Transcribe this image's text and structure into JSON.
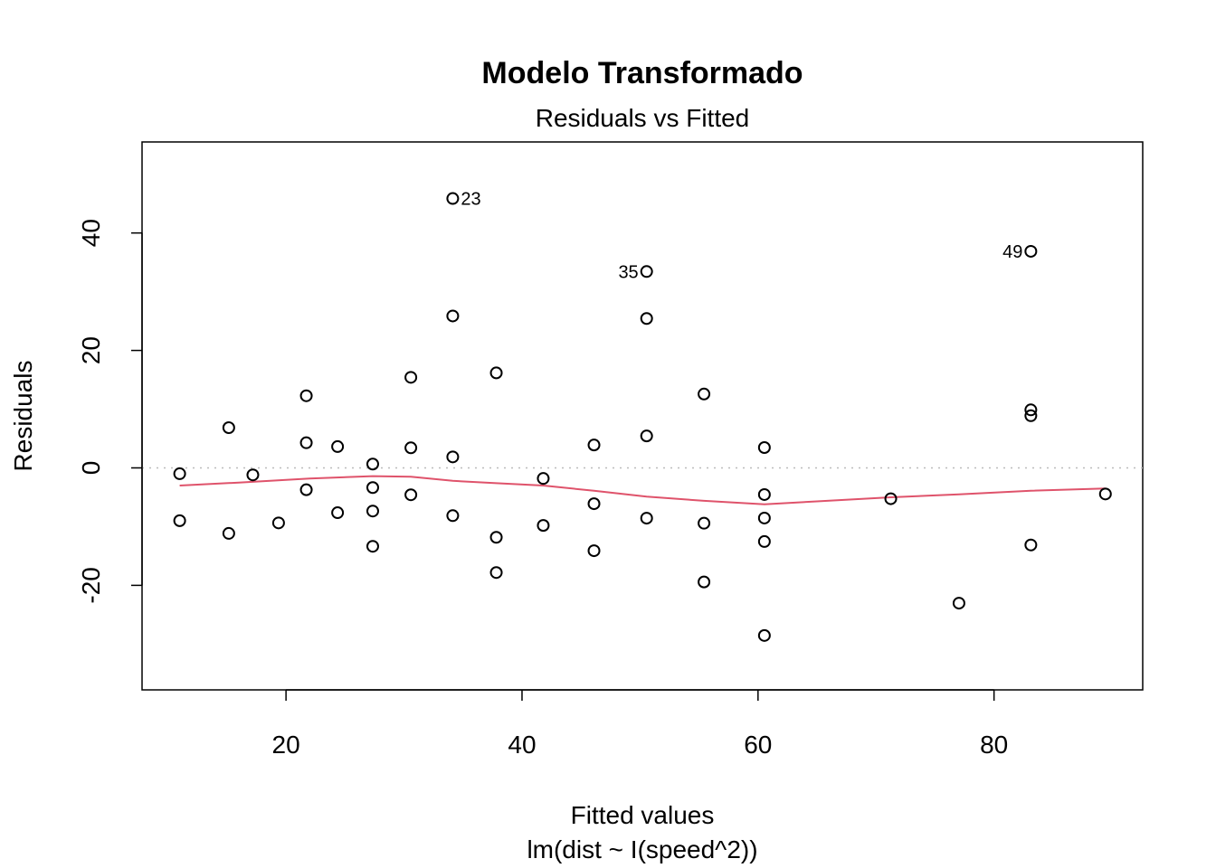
{
  "chart_data": {
    "type": "scatter",
    "title": "Modelo Transformado",
    "subtitle": "Residuals vs Fitted",
    "xlabel": "Fitted values",
    "xlabel_sub": "lm(dist ~ I(speed^2))",
    "ylabel": "Residuals",
    "xlim": [
      7.8,
      92.6
    ],
    "ylim": [
      -37.8,
      55.5
    ],
    "x_ticks": [
      20,
      40,
      60,
      80
    ],
    "y_ticks": [
      -20,
      0,
      20,
      40
    ],
    "reference_line": {
      "y": 0,
      "style": "dotted",
      "color": "#bbbbbb"
    },
    "points": [
      {
        "x": 10.99,
        "y": -0.99
      },
      {
        "x": 10.99,
        "y": -8.99
      },
      {
        "x": 15.15,
        "y": 6.85
      },
      {
        "x": 15.15,
        "y": -11.15
      },
      {
        "x": 17.19,
        "y": -1.19
      },
      {
        "x": 19.37,
        "y": -9.37
      },
      {
        "x": 21.72,
        "y": 12.28
      },
      {
        "x": 21.72,
        "y": 4.28
      },
      {
        "x": 21.72,
        "y": -3.72
      },
      {
        "x": 24.37,
        "y": 3.63
      },
      {
        "x": 24.37,
        "y": -7.63
      },
      {
        "x": 27.35,
        "y": 0.65
      },
      {
        "x": 27.35,
        "y": -3.35
      },
      {
        "x": 27.35,
        "y": -7.35
      },
      {
        "x": 27.35,
        "y": -13.35
      },
      {
        "x": 30.58,
        "y": 15.42
      },
      {
        "x": 30.58,
        "y": 3.42
      },
      {
        "x": 30.58,
        "y": -4.58
      },
      {
        "x": 34.13,
        "y": 45.87,
        "label": "23"
      },
      {
        "x": 34.13,
        "y": 25.87
      },
      {
        "x": 34.13,
        "y": 1.87
      },
      {
        "x": 34.13,
        "y": -8.13
      },
      {
        "x": 37.82,
        "y": 16.18
      },
      {
        "x": 37.82,
        "y": -11.82
      },
      {
        "x": 37.82,
        "y": -17.82
      },
      {
        "x": 41.8,
        "y": -1.8
      },
      {
        "x": 41.8,
        "y": -9.8
      },
      {
        "x": 46.1,
        "y": 3.9
      },
      {
        "x": 46.1,
        "y": -6.1
      },
      {
        "x": 46.1,
        "y": -14.1
      },
      {
        "x": 50.56,
        "y": 33.44,
        "label": "35"
      },
      {
        "x": 50.56,
        "y": 25.44
      },
      {
        "x": 50.56,
        "y": 5.44
      },
      {
        "x": 50.56,
        "y": -8.56
      },
      {
        "x": 55.42,
        "y": 12.58
      },
      {
        "x": 55.42,
        "y": -9.42
      },
      {
        "x": 55.42,
        "y": -19.42
      },
      {
        "x": 60.54,
        "y": 3.46
      },
      {
        "x": 60.54,
        "y": -4.54
      },
      {
        "x": 60.54,
        "y": -8.54
      },
      {
        "x": 60.54,
        "y": -12.54
      },
      {
        "x": 60.54,
        "y": -28.54
      },
      {
        "x": 71.25,
        "y": -5.25
      },
      {
        "x": 77.03,
        "y": -23.03
      },
      {
        "x": 83.12,
        "y": 36.88,
        "label": "49"
      },
      {
        "x": 83.12,
        "y": 9.88
      },
      {
        "x": 83.12,
        "y": 8.88
      },
      {
        "x": 83.12,
        "y": -13.12
      },
      {
        "x": 89.44,
        "y": -4.44
      }
    ],
    "smoother": {
      "color": "#DF536B",
      "points": [
        {
          "x": 10.99,
          "y": -3.0
        },
        {
          "x": 16.0,
          "y": -2.5
        },
        {
          "x": 22.0,
          "y": -1.8
        },
        {
          "x": 27.35,
          "y": -1.4
        },
        {
          "x": 30.58,
          "y": -1.5
        },
        {
          "x": 34.13,
          "y": -2.2
        },
        {
          "x": 37.82,
          "y": -2.6
        },
        {
          "x": 41.8,
          "y": -3.0
        },
        {
          "x": 46.1,
          "y": -3.9
        },
        {
          "x": 50.56,
          "y": -4.9
        },
        {
          "x": 55.42,
          "y": -5.6
        },
        {
          "x": 60.54,
          "y": -6.2
        },
        {
          "x": 65.0,
          "y": -5.7
        },
        {
          "x": 71.25,
          "y": -5.0
        },
        {
          "x": 77.03,
          "y": -4.5
        },
        {
          "x": 83.12,
          "y": -3.9
        },
        {
          "x": 89.44,
          "y": -3.5
        }
      ]
    }
  }
}
